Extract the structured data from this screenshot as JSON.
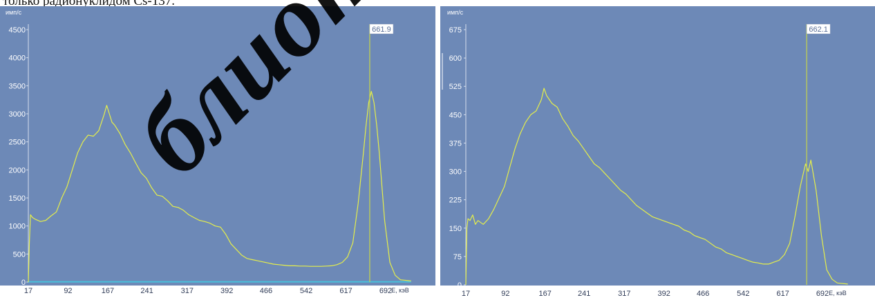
{
  "caption": "только радионуклидом Cs-137.",
  "watermark": "блиотек",
  "colors": {
    "plot_bg": "#6d89b7",
    "spectrum": "#e6ef4a",
    "marker": "#c8d64a",
    "baseline": "#48c0dc",
    "axis_text_on_plot": "#ffffff",
    "axis_text_below": "#303c58"
  },
  "chart_data": [
    {
      "type": "line",
      "title": "",
      "xlabel": "E, кэВ",
      "ylabel": "имп/с",
      "xlim": [
        17,
        760
      ],
      "ylim": [
        0,
        4550
      ],
      "x_ticks": [
        "17",
        "92",
        "167",
        "241",
        "317",
        "392",
        "466",
        "542",
        "617",
        "692"
      ],
      "y_ticks": [
        "0",
        "500",
        "1000",
        "1500",
        "2000",
        "2500",
        "3000",
        "3500",
        "4000",
        "4500"
      ],
      "peak_marker": {
        "x": 661.9,
        "label": "661.9"
      },
      "baseline_y": 5,
      "series": [
        {
          "x": [
            17,
            19,
            21,
            25,
            30,
            40,
            50,
            60,
            70,
            80,
            90,
            100,
            110,
            120,
            130,
            140,
            150,
            160,
            165,
            170,
            175,
            180,
            190,
            200,
            210,
            220,
            230,
            240,
            250,
            260,
            270,
            280,
            290,
            300,
            310,
            320,
            330,
            340,
            350,
            360,
            370,
            380,
            390,
            400,
            410,
            420,
            430,
            440,
            450,
            460,
            470,
            480,
            490,
            500,
            510,
            520,
            530,
            540,
            550,
            560,
            570,
            580,
            590,
            600,
            610,
            620,
            630,
            640,
            650,
            655,
            660,
            665,
            670,
            675,
            680,
            690,
            700,
            710,
            720,
            740
          ],
          "y": [
            0,
            700,
            1200,
            1150,
            1120,
            1080,
            1100,
            1180,
            1250,
            1500,
            1700,
            2000,
            2300,
            2500,
            2620,
            2600,
            2700,
            2980,
            3150,
            3000,
            2850,
            2800,
            2650,
            2450,
            2300,
            2120,
            1950,
            1850,
            1680,
            1550,
            1530,
            1450,
            1350,
            1330,
            1280,
            1200,
            1150,
            1100,
            1080,
            1050,
            1000,
            980,
            850,
            680,
            580,
            480,
            420,
            400,
            380,
            360,
            340,
            320,
            310,
            300,
            290,
            290,
            285,
            285,
            280,
            280,
            280,
            285,
            290,
            310,
            350,
            450,
            700,
            1400,
            2300,
            2800,
            3200,
            3400,
            3200,
            2800,
            2300,
            1100,
            350,
            120,
            40,
            20
          ]
        }
      ]
    },
    {
      "type": "line",
      "title": "",
      "xlabel": "E, кэВ",
      "ylabel": "имп/с",
      "xlim": [
        17,
        760
      ],
      "ylim": [
        0,
        685
      ],
      "x_ticks": [
        "17",
        "92",
        "167",
        "241",
        "317",
        "392",
        "466",
        "542",
        "617",
        "692"
      ],
      "y_ticks": [
        "0",
        "75",
        "150",
        "225",
        "300",
        "375",
        "450",
        "525",
        "600",
        "675"
      ],
      "peak_marker": {
        "x": 662.1,
        "label": "662.1"
      },
      "series": [
        {
          "x": [
            17,
            19,
            21,
            25,
            30,
            35,
            40,
            50,
            60,
            70,
            80,
            90,
            100,
            110,
            120,
            130,
            140,
            150,
            160,
            165,
            170,
            180,
            190,
            200,
            210,
            220,
            230,
            240,
            250,
            260,
            270,
            280,
            290,
            300,
            310,
            320,
            330,
            340,
            350,
            360,
            370,
            380,
            390,
            400,
            410,
            420,
            430,
            440,
            450,
            460,
            470,
            480,
            490,
            500,
            510,
            520,
            530,
            540,
            550,
            560,
            570,
            580,
            590,
            600,
            610,
            620,
            630,
            640,
            650,
            655,
            660,
            665,
            670,
            675,
            680,
            690,
            700,
            710,
            720,
            740
          ],
          "y": [
            0,
            150,
            175,
            170,
            185,
            160,
            170,
            160,
            175,
            200,
            230,
            260,
            310,
            360,
            400,
            430,
            450,
            460,
            490,
            520,
            500,
            480,
            470,
            440,
            420,
            395,
            380,
            360,
            340,
            320,
            310,
            295,
            280,
            265,
            250,
            240,
            225,
            210,
            200,
            190,
            180,
            175,
            170,
            165,
            160,
            155,
            145,
            140,
            130,
            125,
            120,
            110,
            100,
            95,
            85,
            80,
            75,
            70,
            65,
            60,
            58,
            55,
            55,
            60,
            65,
            80,
            110,
            180,
            260,
            290,
            320,
            300,
            330,
            290,
            250,
            130,
            40,
            15,
            5,
            2
          ]
        }
      ]
    }
  ]
}
